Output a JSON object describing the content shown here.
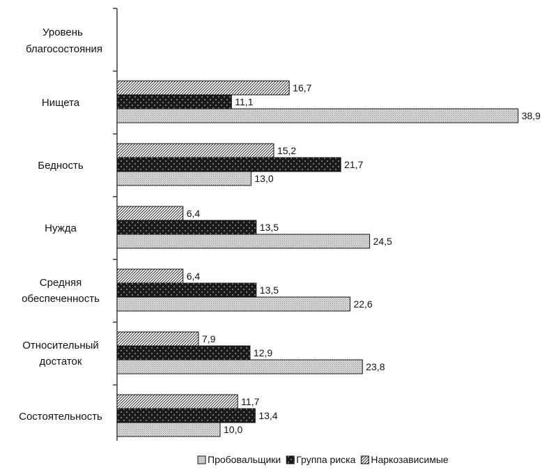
{
  "chart_data": {
    "type": "bar",
    "orientation": "horizontal",
    "axis_label": "Уровень благосостояния",
    "categories": [
      "Нищета",
      "Бедность",
      "Нужда",
      "Средняя обеспеченность",
      "Относительный достаток",
      "Состоятельность"
    ],
    "category_display": {
      "Нищета": "Нищета",
      "Бедность": "Бедность",
      "Нужда": "Нужда",
      "Средняя обеспеченность": "Средняя обеспеченность",
      "Относительный достаток": "Относительный достаток",
      "Состоятельность": "Состоятельность"
    },
    "series": [
      {
        "name": "Наркозависимые",
        "values": [
          16.7,
          15.2,
          6.4,
          6.4,
          7.9,
          11.7
        ],
        "labels": [
          "16,7",
          "15,2",
          "6,4",
          "6,4",
          "7,9",
          "11,7"
        ],
        "pattern": "hatch"
      },
      {
        "name": "Группа риска",
        "values": [
          11.1,
          21.7,
          13.5,
          13.5,
          12.9,
          13.4
        ],
        "labels": [
          "11,1",
          "21,7",
          "13,5",
          "13,5",
          "12,9",
          "13,4"
        ],
        "pattern": "dark"
      },
      {
        "name": "Пробовальщики",
        "values": [
          38.9,
          13.0,
          24.5,
          22.6,
          23.8,
          10.0
        ],
        "labels": [
          "38,9",
          "13,0",
          "24,5",
          "22,6",
          "23,8",
          "10,0"
        ],
        "pattern": "light"
      }
    ],
    "legend": {
      "placement": "bottom-right",
      "order": [
        "Пробовальщики",
        "Группа риска",
        "Наркозависимые"
      ]
    },
    "xlim": [
      0,
      40
    ],
    "grid": false,
    "colors": {
      "dark": "#1a1a1a",
      "light": "#d6d6d6",
      "hatch": "#ffffff",
      "stroke": "#111111"
    }
  }
}
